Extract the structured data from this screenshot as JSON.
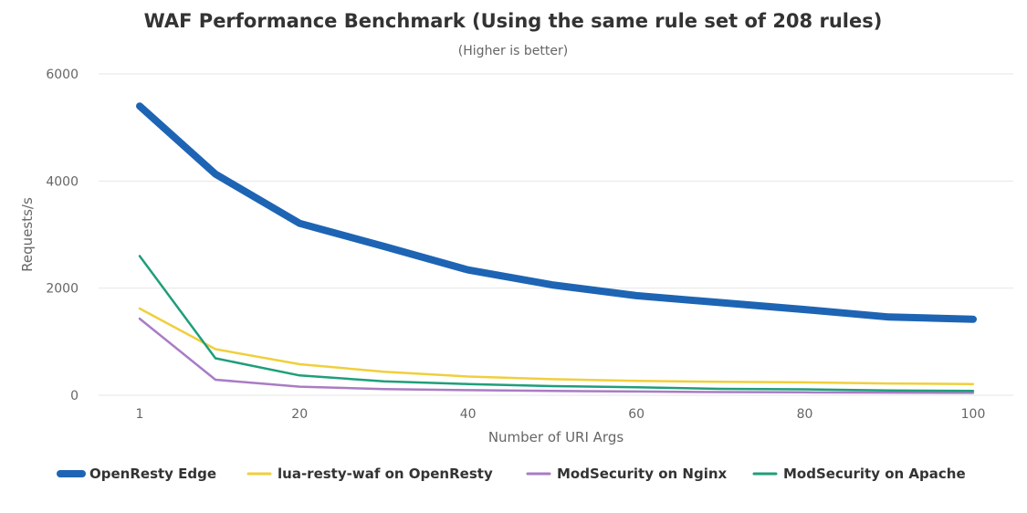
{
  "chart_data": {
    "type": "line",
    "title": "WAF Performance Benchmark (Using the same rule set of 208 rules)",
    "subtitle": "(Higher is better)",
    "xlabel": "Number of URI Args",
    "ylabel": "Requests/s",
    "xlim": [
      1,
      100
    ],
    "ylim": [
      0,
      6000
    ],
    "x_ticks": [
      1,
      20,
      40,
      60,
      80,
      100
    ],
    "y_ticks": [
      0,
      2000,
      4000,
      6000
    ],
    "grid": true,
    "legend_position": "bottom",
    "x": [
      1,
      10,
      20,
      30,
      40,
      50,
      60,
      70,
      80,
      90,
      100
    ],
    "series": [
      {
        "name": "OpenResty Edge",
        "color": "#1e64b4",
        "values": [
          5400,
          4130,
          3210,
          2780,
          2340,
          2060,
          1860,
          1730,
          1600,
          1460,
          1420
        ]
      },
      {
        "name": "lua-resty-waf on OpenResty",
        "color": "#f0cf3c",
        "values": [
          1620,
          860,
          580,
          440,
          350,
          300,
          270,
          250,
          240,
          220,
          210
        ]
      },
      {
        "name": "ModSecurity on Nginx",
        "color": "#a97cc4",
        "values": [
          1430,
          290,
          160,
          115,
          95,
          80,
          70,
          60,
          55,
          50,
          45
        ]
      },
      {
        "name": "ModSecurity on Apache",
        "color": "#1f9e7a",
        "values": [
          2600,
          690,
          370,
          260,
          210,
          170,
          150,
          120,
          110,
          90,
          80
        ]
      }
    ]
  }
}
